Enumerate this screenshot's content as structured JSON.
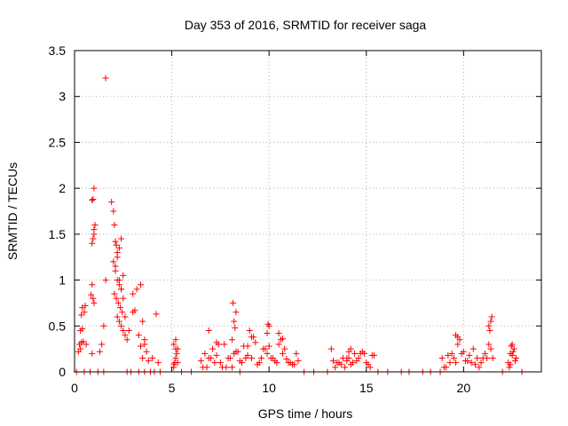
{
  "chart_data": {
    "type": "scatter",
    "title": "Day 353 of 2016, SRMTID for receiver saga",
    "xlabel": "GPS time / hours",
    "ylabel": "SRMTID / TECUs",
    "xlim": [
      0,
      24
    ],
    "ylim": [
      0,
      3.5
    ],
    "xticks": [
      0,
      5,
      10,
      15,
      20
    ],
    "xtick_labels": [
      "0",
      "5",
      "10",
      "15",
      "20"
    ],
    "yticks": [
      0,
      0.5,
      1,
      1.5,
      2,
      2.5,
      3,
      3.5
    ],
    "ytick_labels": [
      "0",
      "0.5",
      "1",
      "1.5",
      "2",
      "2.5",
      "3",
      "3.5"
    ],
    "grid": true,
    "marker": "+",
    "series": [
      {
        "name": "SRMTID",
        "color": "#ff0000",
        "x": [
          0.2,
          0.25,
          0.3,
          0.35,
          0.4,
          0.45,
          0.3,
          0.35,
          0.4,
          0.5,
          0.55,
          0.6,
          0.85,
          0.9,
          0.95,
          1.0,
          0.9,
          0.95,
          1.0,
          1.05,
          1.0,
          0.9,
          0.95,
          1.0,
          0.9,
          1.3,
          1.4,
          1.5,
          1.6,
          1.9,
          2.0,
          2.05,
          2.1,
          2.15,
          2.2,
          2.0,
          2.1,
          2.2,
          2.3,
          2.4,
          2.05,
          2.15,
          2.25,
          2.35,
          2.45,
          2.2,
          2.3,
          2.4,
          2.5,
          2.6,
          2.1,
          2.2,
          2.3,
          2.4,
          2.5,
          2.3,
          2.4,
          2.5,
          2.6,
          2.7,
          1.6,
          2.8,
          3.0,
          3.1,
          3.2,
          3.4,
          3.5,
          3.6,
          3.4,
          3.5,
          3.6,
          3.8,
          4.2,
          3.0,
          3.3,
          3.7,
          4.0,
          4.3,
          5.1,
          5.15,
          5.2,
          5.25,
          5.3,
          5.1,
          5.2,
          5.3,
          5.2,
          5.1,
          6.5,
          6.7,
          6.9,
          7.1,
          7.3,
          7.5,
          7.7,
          7.9,
          8.1,
          8.3,
          8.5,
          8.7,
          8.9,
          9.1,
          9.3,
          9.5,
          9.7,
          9.9,
          10.1,
          10.3,
          10.5,
          10.7,
          10.9,
          11.1,
          11.3,
          11.5,
          6.6,
          7.0,
          7.4,
          7.8,
          8.2,
          8.6,
          9.0,
          9.4,
          9.8,
          10.2,
          10.6,
          11.0,
          11.4,
          6.8,
          7.2,
          7.6,
          8.0,
          8.4,
          8.8,
          9.2,
          9.6,
          10.0,
          10.4,
          10.8,
          11.2,
          8.1,
          8.2,
          8.3,
          8.15,
          8.25,
          9.9,
          10.0,
          9.95,
          6.9,
          7.3,
          8.9,
          9.1,
          10.5,
          10.7,
          13.2,
          13.4,
          13.6,
          13.8,
          14.0,
          14.2,
          14.4,
          14.6,
          14.8,
          15.0,
          15.2,
          15.4,
          13.3,
          13.7,
          14.1,
          14.5,
          14.9,
          15.3,
          13.5,
          13.9,
          14.3,
          14.7,
          15.1,
          14.0,
          14.2,
          14.1,
          18.9,
          19.1,
          19.3,
          19.5,
          19.7,
          19.9,
          20.1,
          20.3,
          20.5,
          20.7,
          20.9,
          21.1,
          21.3,
          21.5,
          19.0,
          19.4,
          19.8,
          20.2,
          20.6,
          21.0,
          21.4,
          19.2,
          19.6,
          20.0,
          20.4,
          20.8,
          21.2,
          21.35,
          21.4,
          21.45,
          21.3,
          19.6,
          19.7,
          22.3,
          22.4,
          22.5,
          22.6,
          22.7,
          22.35,
          22.45,
          22.55,
          22.65,
          22.4,
          22.5,
          0.1,
          0.5,
          0.8,
          1.2,
          1.5,
          2.7,
          2.9,
          3.3,
          3.6,
          3.9,
          4.1,
          4.4,
          5.5,
          6.0,
          8.5,
          11.8,
          12.3,
          13.0,
          15.6,
          16.1,
          16.8,
          17.2,
          17.9,
          18.3,
          18.8,
          22.0,
          23.0
        ],
        "y": [
          0.22,
          0.3,
          0.45,
          0.62,
          0.7,
          0.33,
          0.25,
          0.32,
          0.47,
          0.65,
          0.72,
          0.3,
          0.84,
          0.95,
          0.8,
          0.75,
          1.4,
          1.45,
          1.55,
          1.6,
          2.0,
          1.87,
          1.88,
          1.5,
          0.2,
          0.22,
          0.3,
          0.5,
          1.0,
          1.85,
          1.75,
          1.6,
          1.42,
          1.38,
          1.3,
          1.2,
          1.1,
          1.0,
          0.95,
          0.9,
          0.85,
          0.8,
          0.75,
          0.7,
          0.65,
          0.6,
          0.55,
          0.5,
          0.45,
          0.4,
          1.15,
          1.25,
          1.35,
          1.45,
          1.05,
          1.0,
          0.9,
          0.8,
          0.6,
          0.35,
          3.2,
          0.45,
          0.65,
          0.67,
          0.9,
          0.95,
          0.55,
          0.35,
          0.28,
          0.15,
          0.3,
          0.12,
          0.63,
          0.85,
          0.4,
          0.22,
          0.15,
          0.1,
          0.05,
          0.1,
          0.15,
          0.2,
          0.25,
          0.3,
          0.35,
          0.1,
          0.25,
          0.08,
          0.12,
          0.2,
          0.15,
          0.25,
          0.18,
          0.1,
          0.3,
          0.15,
          0.35,
          0.22,
          0.12,
          0.28,
          0.18,
          0.15,
          0.32,
          0.1,
          0.25,
          0.2,
          0.15,
          0.12,
          0.3,
          0.2,
          0.14,
          0.1,
          0.08,
          0.12,
          0.05,
          0.15,
          0.3,
          0.05,
          0.2,
          0.1,
          0.45,
          0.08,
          0.25,
          0.15,
          0.35,
          0.1,
          0.2,
          0.05,
          0.1,
          0.05,
          0.15,
          0.22,
          0.15,
          0.38,
          0.15,
          0.28,
          0.1,
          0.25,
          0.08,
          0.05,
          0.55,
          0.65,
          0.75,
          0.48,
          0.42,
          0.5,
          0.52,
          0.45,
          0.32,
          0.28,
          0.38,
          0.42,
          0.36,
          0.25,
          0.05,
          0.1,
          0.15,
          0.12,
          0.08,
          0.2,
          0.15,
          0.22,
          0.1,
          0.05,
          0.18,
          0.12,
          0.08,
          0.15,
          0.12,
          0.2,
          0.18,
          0.1,
          0.05,
          0.1,
          0.2,
          0.08,
          0.15,
          0.25,
          0.22,
          0.15,
          0.05,
          0.1,
          0.15,
          0.3,
          0.2,
          0.12,
          0.18,
          0.25,
          0.15,
          0.1,
          0.2,
          0.3,
          0.15,
          0.05,
          0.2,
          0.35,
          0.12,
          0.08,
          0.15,
          0.25,
          0.18,
          0.1,
          0.22,
          0.1,
          0.05,
          0.15,
          0.45,
          0.55,
          0.6,
          0.5,
          0.4,
          0.38,
          0.1,
          0.2,
          0.3,
          0.25,
          0.15,
          0.05,
          0.28,
          0.22,
          0.12,
          0.08,
          0.18,
          0.0,
          0.0,
          0.0,
          0.0,
          0.0,
          0.0,
          0.0,
          0.0,
          0.0,
          0.0,
          0.0,
          0.0,
          0.0,
          0.0,
          0.0,
          0.0,
          0.0,
          0.0,
          0.0,
          0.0,
          0.0,
          0.0,
          0.0,
          0.0,
          0.0,
          0.0,
          0.0
        ]
      }
    ]
  }
}
